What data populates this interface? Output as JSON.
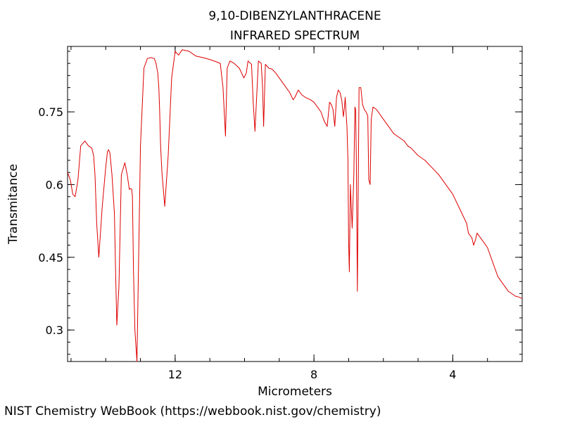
{
  "chart_data": {
    "type": "line",
    "title": "9,10-DIBENZYLANTHRACENE",
    "subtitle": "INFRARED SPECTRUM",
    "xlabel": "Micrometers",
    "ylabel": "Transmitance",
    "xlim": [
      15.1,
      2.0
    ],
    "ylim": [
      0.235,
      0.885
    ],
    "x_reversed": true,
    "x_ticks": [
      12,
      8,
      4
    ],
    "y_ticks": [
      0.3,
      0.45,
      0.6,
      0.75
    ],
    "grid": false,
    "series": [
      {
        "color": "#dd0000",
        "x": [
          15.1,
          15.02,
          14.95,
          14.88,
          14.8,
          14.72,
          14.6,
          14.5,
          14.4,
          14.35,
          14.31,
          14.26,
          14.2,
          14.1,
          14.0,
          13.95,
          13.92,
          13.88,
          13.82,
          13.75,
          13.72,
          13.68,
          13.62,
          13.55,
          13.45,
          13.38,
          13.32,
          13.28,
          13.25,
          13.23,
          13.2,
          13.16,
          13.1,
          13.0,
          12.9,
          12.8,
          12.7,
          12.6,
          12.55,
          12.5,
          12.47,
          12.45,
          12.42,
          12.38,
          12.3,
          12.2,
          12.1,
          12.0,
          11.9,
          11.8,
          11.6,
          11.4,
          11.2,
          11.0,
          10.8,
          10.7,
          10.62,
          10.55,
          10.5,
          10.42,
          10.3,
          10.15,
          10.02,
          9.95,
          9.9,
          9.8,
          9.75,
          9.7,
          9.6,
          9.52,
          9.48,
          9.45,
          9.4,
          9.3,
          9.2,
          9.1,
          9.0,
          8.9,
          8.8,
          8.7,
          8.6,
          8.55,
          8.45,
          8.4,
          8.35,
          8.25,
          8.1,
          8.0,
          7.9,
          7.8,
          7.7,
          7.62,
          7.55,
          7.5,
          7.45,
          7.4,
          7.35,
          7.3,
          7.25,
          7.2,
          7.15,
          7.12,
          7.1,
          7.08,
          7.05,
          7.02,
          7.0,
          6.98,
          6.95,
          6.9,
          6.85,
          6.82,
          6.8,
          6.78,
          6.75,
          6.72,
          6.7,
          6.65,
          6.6,
          6.55,
          6.5,
          6.45,
          6.42,
          6.38,
          6.35,
          6.3,
          6.2,
          6.1,
          6.0,
          5.9,
          5.8,
          5.7,
          5.6,
          5.5,
          5.4,
          5.3,
          5.2,
          5.0,
          4.8,
          4.6,
          4.4,
          4.2,
          4.0,
          3.8,
          3.6,
          3.55,
          3.5,
          3.45,
          3.4,
          3.35,
          3.3,
          3.2,
          3.0,
          2.9,
          2.8,
          2.7,
          2.6,
          2.5,
          2.4,
          2.3,
          2.2,
          2.1,
          2.0
        ],
        "y": [
          0.625,
          0.61,
          0.58,
          0.575,
          0.61,
          0.68,
          0.69,
          0.68,
          0.675,
          0.66,
          0.62,
          0.52,
          0.45,
          0.555,
          0.635,
          0.668,
          0.672,
          0.665,
          0.62,
          0.54,
          0.43,
          0.31,
          0.39,
          0.62,
          0.645,
          0.62,
          0.59,
          0.592,
          0.59,
          0.575,
          0.42,
          0.3,
          0.235,
          0.68,
          0.84,
          0.86,
          0.862,
          0.86,
          0.85,
          0.83,
          0.8,
          0.76,
          0.68,
          0.625,
          0.555,
          0.66,
          0.82,
          0.875,
          0.867,
          0.878,
          0.875,
          0.865,
          0.862,
          0.858,
          0.853,
          0.85,
          0.8,
          0.7,
          0.84,
          0.855,
          0.85,
          0.84,
          0.82,
          0.83,
          0.855,
          0.848,
          0.77,
          0.71,
          0.855,
          0.85,
          0.8,
          0.72,
          0.848,
          0.84,
          0.838,
          0.83,
          0.82,
          0.81,
          0.8,
          0.79,
          0.775,
          0.78,
          0.795,
          0.79,
          0.785,
          0.78,
          0.775,
          0.77,
          0.76,
          0.75,
          0.73,
          0.72,
          0.77,
          0.765,
          0.755,
          0.72,
          0.78,
          0.795,
          0.79,
          0.775,
          0.74,
          0.76,
          0.78,
          0.755,
          0.72,
          0.65,
          0.48,
          0.42,
          0.6,
          0.51,
          0.62,
          0.76,
          0.755,
          0.66,
          0.38,
          0.62,
          0.8,
          0.8,
          0.765,
          0.755,
          0.75,
          0.742,
          0.61,
          0.6,
          0.735,
          0.76,
          0.755,
          0.745,
          0.735,
          0.725,
          0.715,
          0.705,
          0.7,
          0.695,
          0.69,
          0.68,
          0.675,
          0.66,
          0.65,
          0.635,
          0.62,
          0.6,
          0.58,
          0.55,
          0.52,
          0.5,
          0.495,
          0.49,
          0.475,
          0.485,
          0.5,
          0.49,
          0.47,
          0.45,
          0.43,
          0.41,
          0.4,
          0.39,
          0.38,
          0.375,
          0.37,
          0.368,
          0.365
        ]
      }
    ]
  },
  "footer": {
    "credit": "NIST Chemistry WebBook (https://webbook.nist.gov/chemistry)"
  }
}
